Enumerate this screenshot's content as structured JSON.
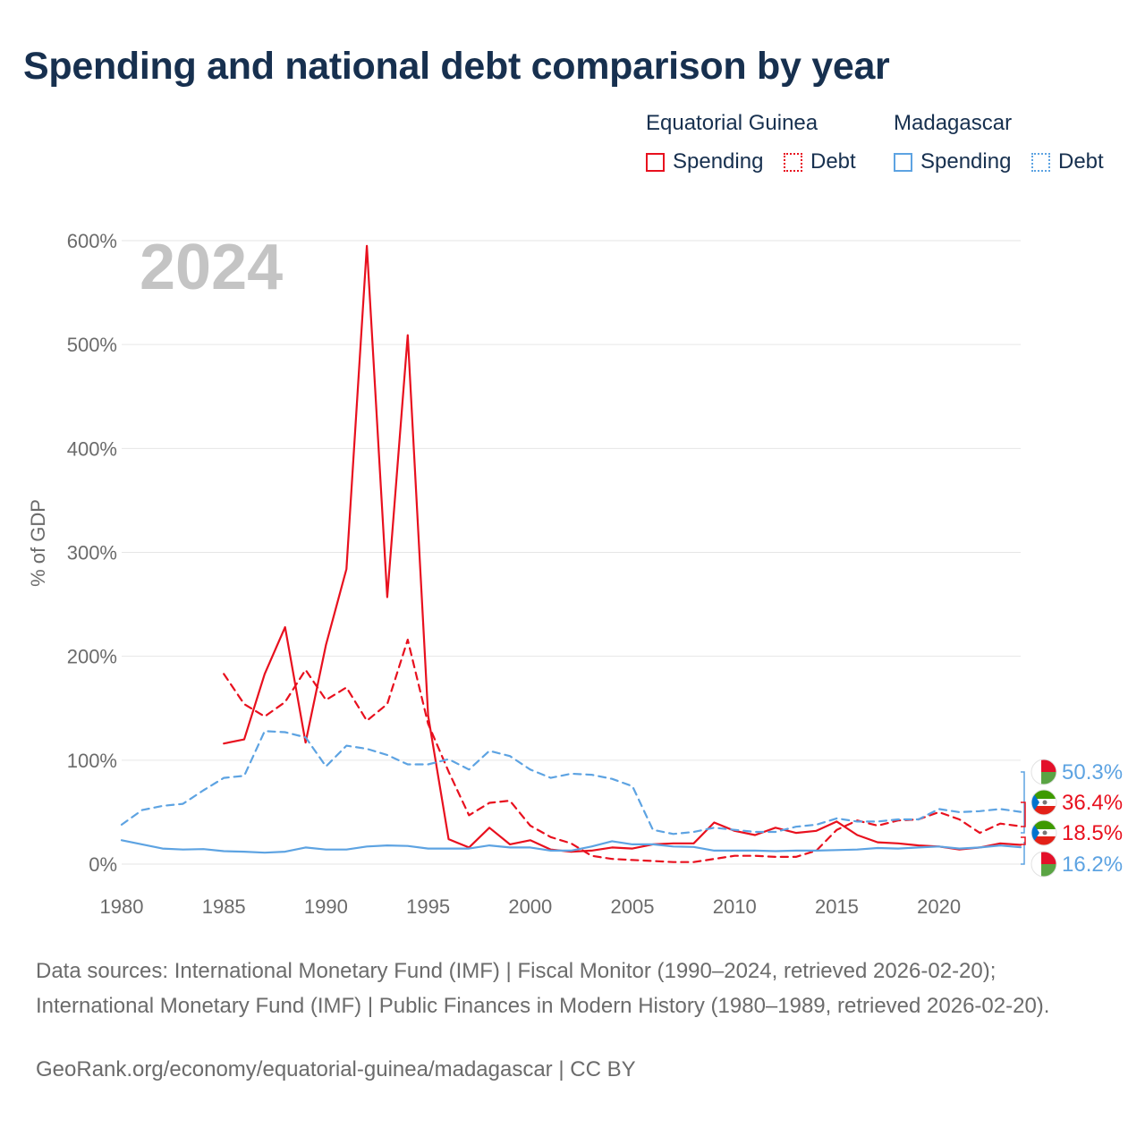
{
  "title": "Spending and national debt comparison by year",
  "legend": {
    "groups": [
      {
        "country": "Equatorial Guinea",
        "color": "#e8101e",
        "items": [
          {
            "label": "Spending",
            "style": "solid"
          },
          {
            "label": "Debt",
            "style": "dotted"
          }
        ]
      },
      {
        "country": "Madagascar",
        "color": "#5da3e2",
        "items": [
          {
            "label": "Spending",
            "style": "solid"
          },
          {
            "label": "Debt",
            "style": "dotted"
          }
        ]
      }
    ]
  },
  "colors": {
    "equatorial_guinea": "#e8101e",
    "madagascar": "#5da3e2",
    "grid": "#e6e6e6",
    "axis_text": "#6b6b6b",
    "year_label": "#c4c4c4"
  },
  "chart_data": {
    "type": "line",
    "year_label": "2024",
    "ylabel": "% of GDP",
    "ylim": [
      0,
      600
    ],
    "xlim": [
      1980,
      2024
    ],
    "y_ticks": [
      {
        "value": 0,
        "label": "0%"
      },
      {
        "value": 100,
        "label": "100%"
      },
      {
        "value": 200,
        "label": "200%"
      },
      {
        "value": 300,
        "label": "300%"
      },
      {
        "value": 400,
        "label": "400%"
      },
      {
        "value": 500,
        "label": "500%"
      },
      {
        "value": 600,
        "label": "600%"
      }
    ],
    "x_ticks": [
      {
        "value": 1980,
        "label": "1980"
      },
      {
        "value": 1985,
        "label": "1985"
      },
      {
        "value": 1990,
        "label": "1990"
      },
      {
        "value": 1995,
        "label": "1995"
      },
      {
        "value": 2000,
        "label": "2000"
      },
      {
        "value": 2005,
        "label": "2005"
      },
      {
        "value": 2010,
        "label": "2010"
      },
      {
        "value": 2015,
        "label": "2015"
      },
      {
        "value": 2020,
        "label": "2020"
      }
    ],
    "series": [
      {
        "name": "Equatorial Guinea Spending",
        "country": "equatorial_guinea",
        "dash": "solid",
        "start_year": 1985,
        "values": [
          116,
          120,
          183,
          228,
          117,
          211,
          284,
          595,
          257,
          509,
          143,
          24,
          16,
          35,
          19,
          23,
          14,
          12,
          13,
          16,
          15,
          19,
          20,
          20,
          40,
          32,
          28,
          35,
          30,
          32,
          41,
          28,
          21,
          20,
          18,
          17,
          14,
          16,
          20,
          18.5
        ]
      },
      {
        "name": "Equatorial Guinea Debt",
        "country": "equatorial_guinea",
        "dash": "dashed",
        "start_year": 1985,
        "values": [
          183,
          154,
          142,
          156,
          187,
          158,
          170,
          138,
          154,
          216,
          135,
          89,
          47,
          59,
          61,
          37,
          26,
          20,
          8,
          5,
          4,
          3,
          2,
          2,
          5,
          8,
          8,
          7,
          7,
          13,
          33,
          42,
          37,
          42,
          43,
          50,
          43,
          30,
          39,
          36.4
        ]
      },
      {
        "name": "Madagascar Spending",
        "country": "madagascar",
        "dash": "solid",
        "start_year": 1980,
        "values": [
          23,
          19,
          15,
          14,
          14.5,
          12.5,
          12,
          11,
          12,
          16,
          14,
          14,
          17,
          18,
          17.5,
          15,
          15,
          15,
          18,
          16,
          16,
          13,
          13,
          17,
          22,
          19,
          19,
          17,
          16.5,
          13,
          13,
          13,
          12.5,
          13,
          13,
          13.5,
          14,
          15.5,
          15,
          16,
          17,
          15,
          16,
          18,
          16.2
        ]
      },
      {
        "name": "Madagascar Debt",
        "country": "madagascar",
        "dash": "dashed",
        "start_year": 1980,
        "values": [
          38,
          52,
          56,
          58,
          71,
          83,
          85,
          128,
          127,
          122,
          94,
          114,
          111,
          105,
          96,
          96,
          101,
          91,
          109,
          104,
          91,
          83,
          87,
          86,
          82,
          75,
          33,
          29,
          31,
          35,
          33,
          31,
          31,
          36,
          38,
          44,
          41,
          41,
          43,
          43,
          53,
          50,
          51,
          53,
          50.3
        ]
      }
    ],
    "end_labels": [
      {
        "label": "50.3%",
        "country": "madagascar"
      },
      {
        "label": "36.4%",
        "country": "equatorial_guinea"
      },
      {
        "label": "18.5%",
        "country": "equatorial_guinea"
      },
      {
        "label": "16.2%",
        "country": "madagascar"
      }
    ]
  },
  "sources": "Data sources: International Monetary Fund (IMF) | Fiscal Monitor (1990–2024, retrieved 2026-02-20); International Monetary Fund (IMF) | Public Finances in Modern History (1980–1989, retrieved 2026-02-20).",
  "attribution": "GeoRank.org/economy/equatorial-guinea/madagascar | CC BY"
}
